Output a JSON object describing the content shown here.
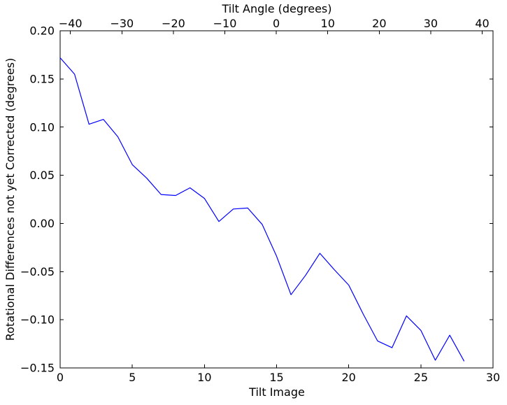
{
  "figure": {
    "background_color": "#ffffff",
    "axes_color": "#000000"
  },
  "chart_data": {
    "type": "line",
    "xlabel": "Tilt Image",
    "ylabel": "Rotational Differences not yet Corrected (degrees)",
    "top_xlabel": "Tilt Angle (degrees)",
    "grid": false,
    "legend": "none",
    "line_color": "#0000ff",
    "xlim": [
      0,
      30
    ],
    "ylim": [
      -0.15,
      0.2
    ],
    "top_xlim": [
      -42.0,
      42.1
    ],
    "x_ticks": [
      0,
      5,
      10,
      15,
      20,
      25,
      30
    ],
    "x_tick_labels": [
      "0",
      "5",
      "10",
      "15",
      "20",
      "25",
      "30"
    ],
    "y_ticks": [
      0.2,
      0.15,
      0.1,
      0.05,
      0.0,
      -0.05,
      -0.1,
      -0.15
    ],
    "y_tick_labels": [
      "0.20",
      "0.15",
      "0.10",
      "0.05",
      "0.00",
      "−0.05",
      "−0.10",
      "−0.15"
    ],
    "top_x_ticks": [
      -40,
      -30,
      -20,
      -10,
      0,
      10,
      20,
      30,
      40
    ],
    "top_x_tick_labels": [
      "−40",
      "−30",
      "−20",
      "−10",
      "0",
      "10",
      "20",
      "30",
      "40"
    ],
    "x": [
      0,
      1,
      2,
      3,
      4,
      5,
      6,
      7,
      8,
      9,
      10,
      11,
      12,
      13,
      14,
      15,
      16,
      17,
      18,
      19,
      20,
      21,
      22,
      23,
      24,
      25,
      26,
      27,
      28
    ],
    "y": [
      0.172,
      0.155,
      0.103,
      0.108,
      0.09,
      0.061,
      0.047,
      0.03,
      0.029,
      0.037,
      0.026,
      0.002,
      0.015,
      0.016,
      -0.001,
      -0.034,
      -0.074,
      -0.054,
      -0.031,
      -0.048,
      -0.064,
      -0.094,
      -0.122,
      -0.129,
      -0.096,
      -0.111,
      -0.142,
      -0.116,
      -0.143
    ]
  }
}
